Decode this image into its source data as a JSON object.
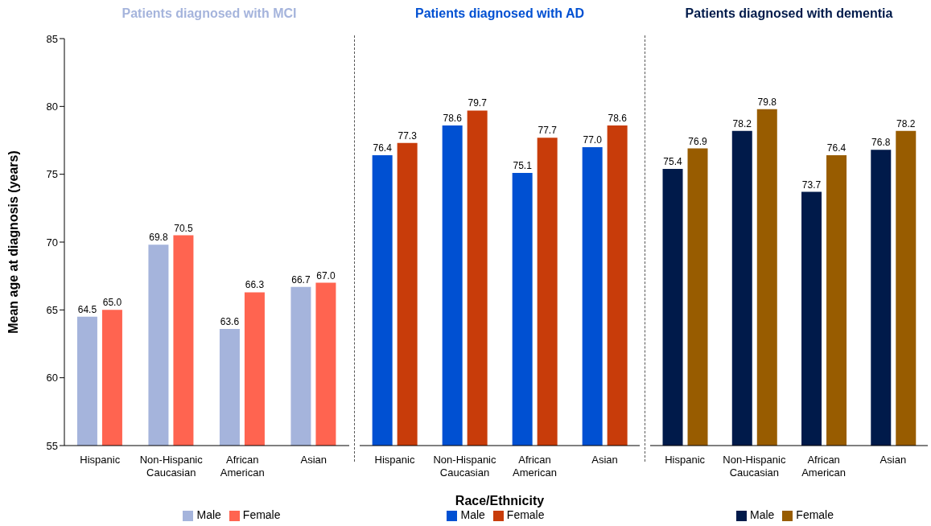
{
  "chart_data": [
    {
      "type": "bar",
      "title": "Patients diagnosed with MCI",
      "ylabel": "Mean age at diagnosis (years)",
      "categories": [
        "Hispanic",
        "Non-Hispanic Caucasian",
        "African American",
        "Asian"
      ],
      "series": [
        {
          "name": "Male",
          "color": "#a5b4dc",
          "values": [
            64.5,
            69.8,
            63.6,
            66.7
          ],
          "value_labels": [
            "64.5",
            "69.8",
            "63.6",
            "66.7"
          ]
        },
        {
          "name": "Female",
          "color": "#ff6450",
          "values": [
            65.0,
            70.5,
            66.3,
            67.0
          ],
          "value_labels": [
            "65.0",
            "70.5",
            "66.3",
            "67.0"
          ]
        }
      ],
      "ylim": [
        55,
        85
      ],
      "yticks": [
        55,
        60,
        65,
        70,
        75,
        80,
        85
      ],
      "legend": "bottom"
    },
    {
      "type": "bar",
      "title": "Patients diagnosed with AD",
      "xlabel": "Race/Ethnicity",
      "categories": [
        "Hispanic",
        "Non-Hispanic Caucasian",
        "African American",
        "Asian"
      ],
      "series": [
        {
          "name": "Male",
          "color": "#0050d2",
          "values": [
            76.4,
            78.6,
            75.1,
            77.0
          ],
          "value_labels": [
            "76.4",
            "78.6",
            "75.1",
            "77.0"
          ]
        },
        {
          "name": "Female",
          "color": "#c83c0a",
          "values": [
            77.3,
            79.7,
            77.7,
            78.6
          ],
          "value_labels": [
            "77.3",
            "79.7",
            "77.7",
            "78.6"
          ]
        }
      ],
      "ylim": [
        55,
        85
      ],
      "yticks": [
        55,
        60,
        65,
        70,
        75,
        80,
        85
      ],
      "tick_labels": "x",
      "legend": "bottom"
    },
    {
      "type": "bar",
      "title": "Patients diagnosed with dementia",
      "categories": [
        "Hispanic",
        "Non-Hispanic Caucasian",
        "African American",
        "Asian"
      ],
      "series": [
        {
          "name": "Male",
          "color": "#001a4a",
          "values": [
            75.4,
            78.2,
            73.7,
            76.8
          ],
          "value_labels": [
            "75.4",
            "78.2",
            "73.7",
            "76.8"
          ]
        },
        {
          "name": "Female",
          "color": "#985c00",
          "values": [
            76.9,
            79.8,
            76.4,
            78.2
          ],
          "value_labels": [
            "76.9",
            "79.8",
            "76.4",
            "78.2"
          ]
        }
      ],
      "ylim": [
        55,
        85
      ],
      "yticks": [
        55,
        60,
        65,
        70,
        75,
        80,
        85
      ],
      "tick_labels": "x",
      "legend": "bottom"
    }
  ]
}
